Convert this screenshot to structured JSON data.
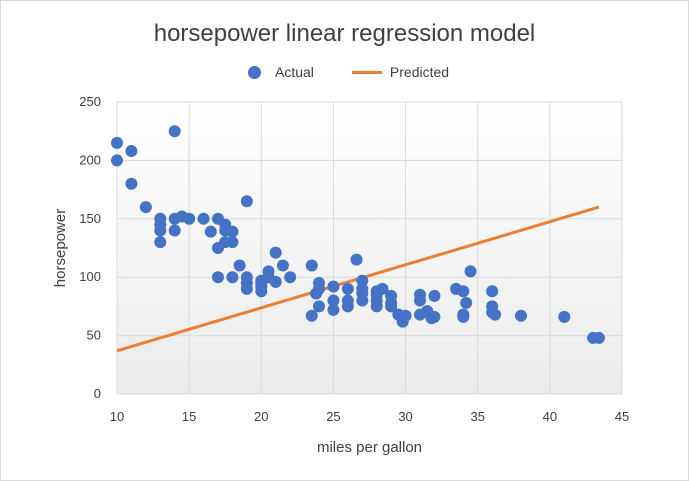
{
  "chart_data": {
    "type": "scatter",
    "title": "horsepower linear regression model",
    "xlabel": "miles per gallon",
    "ylabel": "horsepower",
    "xlim": [
      10,
      45
    ],
    "ylim": [
      0,
      250
    ],
    "xticks": [
      10,
      15,
      20,
      25,
      30,
      35,
      40,
      45
    ],
    "yticks": [
      0,
      50,
      100,
      150,
      200,
      250
    ],
    "grid": true,
    "legend": "top",
    "series": [
      {
        "name": "Actual",
        "kind": "scatter",
        "color": "#4472c4",
        "points": [
          [
            10,
            215
          ],
          [
            10,
            200
          ],
          [
            11,
            208
          ],
          [
            11,
            180
          ],
          [
            12,
            160
          ],
          [
            13,
            150
          ],
          [
            13,
            145
          ],
          [
            13,
            140
          ],
          [
            13,
            130
          ],
          [
            14,
            225
          ],
          [
            14,
            150
          ],
          [
            14,
            140
          ],
          [
            14.5,
            152
          ],
          [
            15,
            150
          ],
          [
            16,
            150
          ],
          [
            16.5,
            139
          ],
          [
            17,
            150
          ],
          [
            17,
            125
          ],
          [
            17,
            100
          ],
          [
            17.5,
            145
          ],
          [
            17.5,
            140
          ],
          [
            17.5,
            130
          ],
          [
            18,
            139
          ],
          [
            18,
            130
          ],
          [
            18,
            100
          ],
          [
            18.5,
            110
          ],
          [
            19,
            165
          ],
          [
            19,
            100
          ],
          [
            19,
            95
          ],
          [
            19,
            90
          ],
          [
            20,
            97
          ],
          [
            20,
            95
          ],
          [
            20,
            92
          ],
          [
            20,
            88
          ],
          [
            20.5,
            105
          ],
          [
            20.5,
            100
          ],
          [
            21,
            121
          ],
          [
            21,
            96
          ],
          [
            21.5,
            110
          ],
          [
            22,
            100
          ],
          [
            23.5,
            110
          ],
          [
            23.5,
            67
          ],
          [
            23.8,
            86
          ],
          [
            24,
            95
          ],
          [
            24,
            90
          ],
          [
            24,
            75
          ],
          [
            25,
            92
          ],
          [
            25,
            80
          ],
          [
            25,
            72
          ],
          [
            26,
            90
          ],
          [
            26,
            80
          ],
          [
            26,
            75
          ],
          [
            26.6,
            115
          ],
          [
            27,
            97
          ],
          [
            27,
            90
          ],
          [
            27,
            86
          ],
          [
            27,
            80
          ],
          [
            28,
            88
          ],
          [
            28,
            85
          ],
          [
            28,
            80
          ],
          [
            28,
            75
          ],
          [
            28.4,
            90
          ],
          [
            29,
            84
          ],
          [
            29,
            78
          ],
          [
            29,
            75
          ],
          [
            29.5,
            68
          ],
          [
            29.8,
            62
          ],
          [
            30,
            67
          ],
          [
            31,
            85
          ],
          [
            31,
            80
          ],
          [
            31,
            68
          ],
          [
            31.5,
            71
          ],
          [
            31.8,
            65
          ],
          [
            32,
            84
          ],
          [
            32,
            66
          ],
          [
            33.5,
            90
          ],
          [
            34,
            88
          ],
          [
            34,
            68
          ],
          [
            34,
            66
          ],
          [
            34.2,
            78
          ],
          [
            34.5,
            105
          ],
          [
            36,
            88
          ],
          [
            36,
            75
          ],
          [
            36,
            70
          ],
          [
            36.2,
            68
          ],
          [
            38,
            67
          ],
          [
            41,
            66
          ],
          [
            43,
            48
          ],
          [
            43.4,
            48
          ]
        ]
      },
      {
        "name": "Predicted",
        "kind": "line",
        "color": "#ed7d31",
        "x": [
          10,
          43.4
        ],
        "y": [
          37,
          160
        ]
      }
    ]
  }
}
